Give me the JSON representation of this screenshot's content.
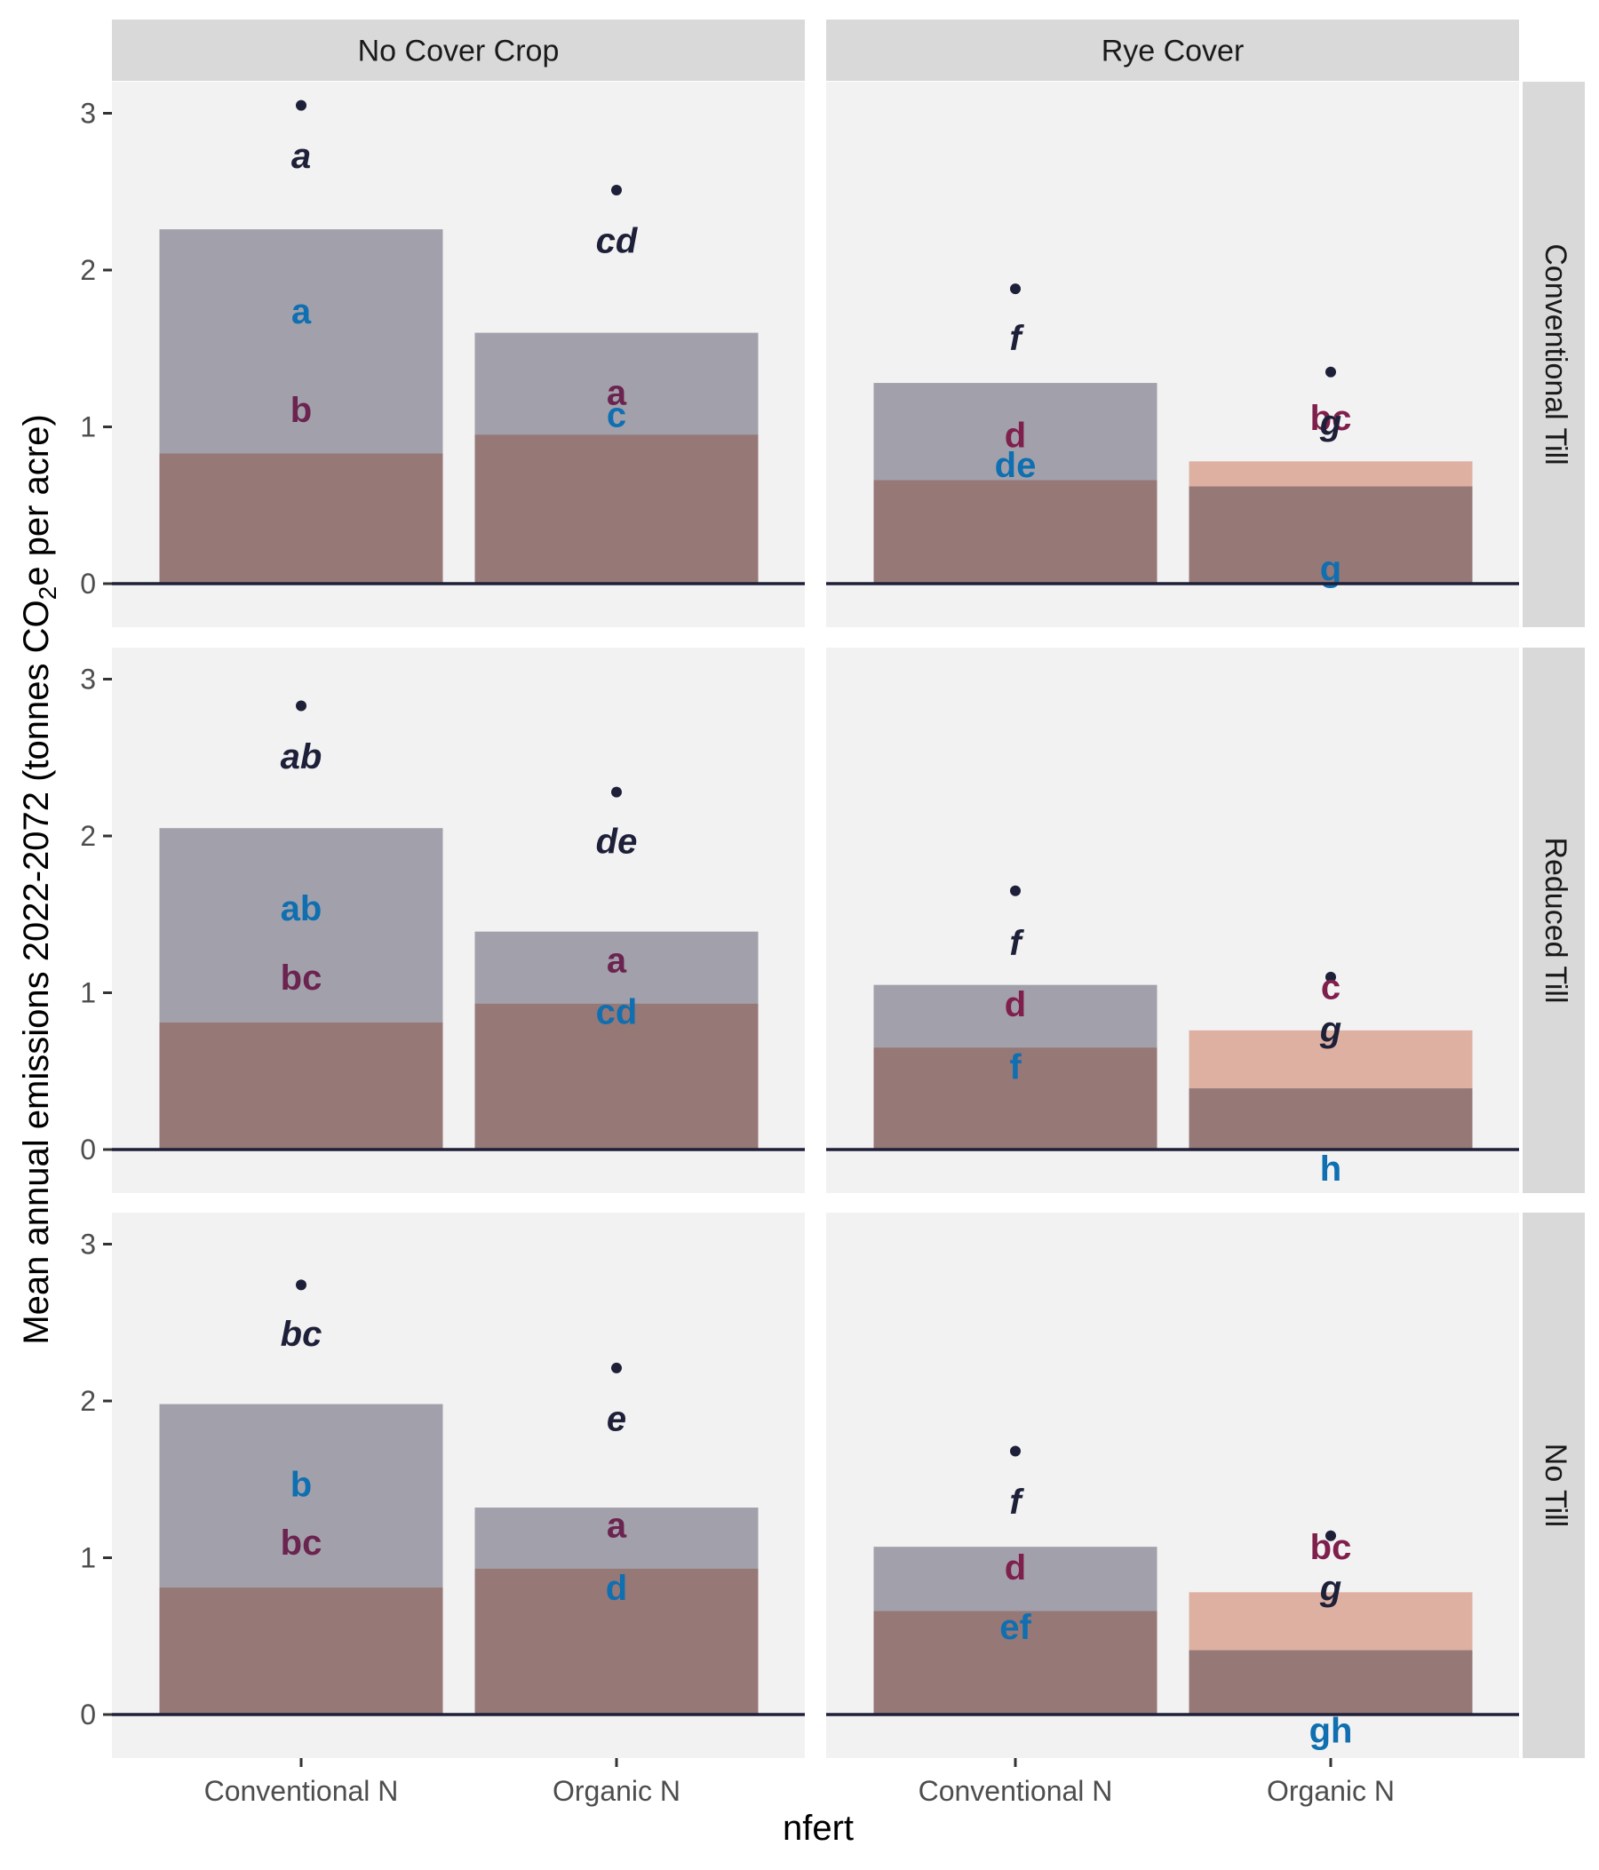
{
  "chart_data": {
    "type": "bar",
    "ylabel": {
      "prefix": "Mean annual emissions 2022-2072 (tonnes CO",
      "subscript": "2",
      "suffix": "e per acre)"
    },
    "xlabel": "nfert",
    "categories": [
      "Conventional N",
      "Organic N"
    ],
    "col_facets": [
      "No Cover Crop",
      "Rye Cover"
    ],
    "row_facets": [
      "Conventional Till",
      "Reduced Till",
      "No Till"
    ],
    "y_ticks": [
      0,
      1,
      2,
      3
    ],
    "ylim": [
      -0.25,
      3.2
    ],
    "colors": {
      "panel_bg": "#f2f2f2",
      "strip_bg": "#d9d9d9",
      "top_bar": "#a2a1ab",
      "bottom_bar": "#967877",
      "rye_overlay": "#deb0a2",
      "point": "#1e2039",
      "total_letter": "#1e2039",
      "top_letter": "#0f6fb0",
      "bottom_letter": "#6b2350",
      "bottom_letter_rye": "#7f1f4c"
    },
    "panels": [
      {
        "row": 0,
        "col": 0,
        "bars": [
          {
            "total": 2.26,
            "bottom": 0.83,
            "overlay": null,
            "point": 3.05,
            "total_letter": {
              "text": "a",
              "y": 2.73
            },
            "top_letter": {
              "text": "a",
              "y": 1.74
            },
            "bottom_letter": {
              "text": "b",
              "y": 1.11
            }
          },
          {
            "total": 1.6,
            "bottom": 0.95,
            "overlay": null,
            "point": 2.51,
            "total_letter": {
              "text": "cd",
              "y": 2.19
            },
            "top_letter": {
              "text": "c",
              "y": 1.08
            },
            "bottom_letter": {
              "text": "a",
              "y": 1.22
            }
          }
        ]
      },
      {
        "row": 0,
        "col": 1,
        "bars": [
          {
            "total": 1.28,
            "bottom": 0.66,
            "overlay": null,
            "point": 1.88,
            "total_letter": {
              "text": "f",
              "y": 1.57
            },
            "top_letter": {
              "text": "de",
              "y": 0.76
            },
            "bottom_letter": {
              "text": "d",
              "y": 0.95
            }
          },
          {
            "total": 0.62,
            "bottom": 0.62,
            "overlay": 0.78,
            "point": 1.35,
            "total_letter": {
              "text": "g",
              "y": 1.03
            },
            "top_letter": {
              "text": "g",
              "y": 0.1
            },
            "bottom_letter": {
              "text": "bc",
              "y": 1.06
            }
          }
        ]
      },
      {
        "row": 1,
        "col": 0,
        "bars": [
          {
            "total": 2.05,
            "bottom": 0.81,
            "overlay": null,
            "point": 2.83,
            "total_letter": {
              "text": "ab",
              "y": 2.51
            },
            "top_letter": {
              "text": "ab",
              "y": 1.54
            },
            "bottom_letter": {
              "text": "bc",
              "y": 1.1
            }
          },
          {
            "total": 1.39,
            "bottom": 0.93,
            "overlay": null,
            "point": 2.28,
            "total_letter": {
              "text": "de",
              "y": 1.97
            },
            "top_letter": {
              "text": "cd",
              "y": 0.88
            },
            "bottom_letter": {
              "text": "a",
              "y": 1.21
            }
          }
        ]
      },
      {
        "row": 1,
        "col": 1,
        "bars": [
          {
            "total": 1.05,
            "bottom": 0.65,
            "overlay": null,
            "point": 1.65,
            "total_letter": {
              "text": "f",
              "y": 1.32
            },
            "top_letter": {
              "text": "f",
              "y": 0.53
            },
            "bottom_letter": {
              "text": "d",
              "y": 0.93
            }
          },
          {
            "total": 0.39,
            "bottom": 0.39,
            "overlay": 0.76,
            "point": 1.1,
            "total_letter": {
              "text": "g",
              "y": 0.77
            },
            "top_letter": {
              "text": "h",
              "y": -0.12
            },
            "bottom_letter": {
              "text": "c",
              "y": 1.04
            }
          }
        ]
      },
      {
        "row": 2,
        "col": 0,
        "bars": [
          {
            "total": 1.98,
            "bottom": 0.81,
            "overlay": null,
            "point": 2.74,
            "total_letter": {
              "text": "bc",
              "y": 2.43
            },
            "top_letter": {
              "text": "b",
              "y": 1.47
            },
            "bottom_letter": {
              "text": "bc",
              "y": 1.1
            }
          },
          {
            "total": 1.32,
            "bottom": 0.93,
            "overlay": null,
            "point": 2.21,
            "total_letter": {
              "text": "e",
              "y": 1.89
            },
            "top_letter": {
              "text": "d",
              "y": 0.81
            },
            "bottom_letter": {
              "text": "a",
              "y": 1.21
            }
          }
        ]
      },
      {
        "row": 2,
        "col": 1,
        "bars": [
          {
            "total": 1.07,
            "bottom": 0.66,
            "overlay": null,
            "point": 1.68,
            "total_letter": {
              "text": "f",
              "y": 1.36
            },
            "top_letter": {
              "text": "ef",
              "y": 0.56
            },
            "bottom_letter": {
              "text": "d",
              "y": 0.94
            }
          },
          {
            "total": 0.41,
            "bottom": 0.41,
            "overlay": 0.78,
            "point": 1.14,
            "total_letter": {
              "text": "g",
              "y": 0.81
            },
            "top_letter": {
              "text": "gh",
              "y": -0.1
            },
            "bottom_letter": {
              "text": "bc",
              "y": 1.07
            }
          }
        ]
      }
    ]
  }
}
